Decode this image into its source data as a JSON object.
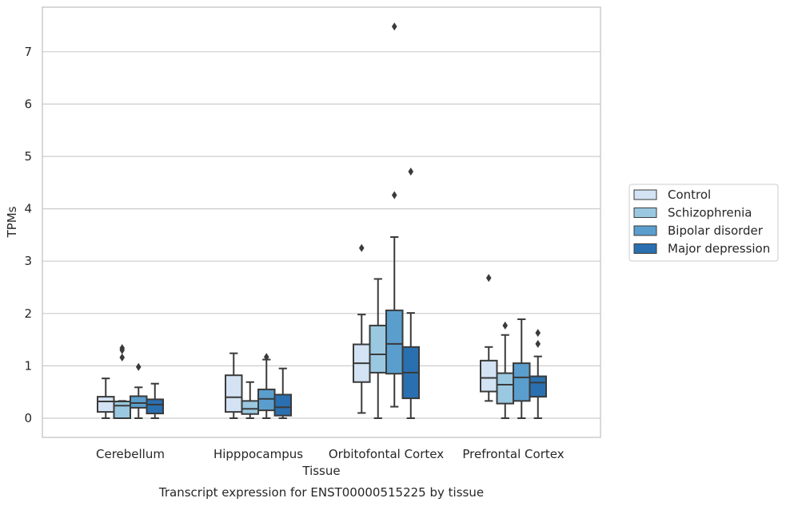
{
  "chart_data": {
    "type": "box",
    "title": "Transcript expression for ENST00000515225 by tissue",
    "xlabel": "Tissue",
    "ylabel": "TPMs",
    "ylim": [
      -0.35,
      7.85
    ],
    "yticks": [
      0,
      1,
      2,
      3,
      4,
      5,
      6,
      7
    ],
    "grid": true,
    "legend_position": "right",
    "categories": [
      "Cerebellum",
      "Hipppocampus",
      "Orbitofontal Cortex",
      "Prefrontal Cortex"
    ],
    "series": [
      {
        "name": "Control",
        "color": "#d3e3f3",
        "boxes": [
          {
            "whisker_low": 0.0,
            "q1": 0.12,
            "median": 0.32,
            "q3": 0.41,
            "whisker_high": 0.76,
            "outliers": []
          },
          {
            "whisker_low": 0.0,
            "q1": 0.12,
            "median": 0.4,
            "q3": 0.82,
            "whisker_high": 1.24,
            "outliers": []
          },
          {
            "whisker_low": 0.1,
            "q1": 0.69,
            "median": 1.05,
            "q3": 1.41,
            "whisker_high": 1.98,
            "outliers": [
              3.25
            ]
          },
          {
            "whisker_low": 0.33,
            "q1": 0.51,
            "median": 0.77,
            "q3": 1.1,
            "whisker_high": 1.36,
            "outliers": [
              2.68
            ]
          }
        ]
      },
      {
        "name": "Schizophrenia",
        "color": "#9ac8e0",
        "boxes": [
          {
            "whisker_low": 0.0,
            "q1": 0.0,
            "median": 0.24,
            "q3": 0.32,
            "whisker_high": 0.33,
            "outliers": [
              1.16,
              1.3,
              1.34
            ]
          },
          {
            "whisker_low": 0.0,
            "q1": 0.08,
            "median": 0.18,
            "q3": 0.33,
            "whisker_high": 0.69,
            "outliers": []
          },
          {
            "whisker_low": 0.0,
            "q1": 0.87,
            "median": 1.22,
            "q3": 1.77,
            "whisker_high": 2.66,
            "outliers": []
          },
          {
            "whisker_low": 0.0,
            "q1": 0.28,
            "median": 0.64,
            "q3": 0.86,
            "whisker_high": 1.59,
            "outliers": [
              1.77
            ]
          }
        ]
      },
      {
        "name": "Bipolar disorder",
        "color": "#5a9ecd",
        "boxes": [
          {
            "whisker_low": 0.0,
            "q1": 0.2,
            "median": 0.29,
            "q3": 0.42,
            "whisker_high": 0.59,
            "outliers": [
              0.98
            ]
          },
          {
            "whisker_low": 0.0,
            "q1": 0.15,
            "median": 0.37,
            "q3": 0.55,
            "whisker_high": 1.12,
            "outliers": [
              1.17
            ]
          },
          {
            "whisker_low": 0.22,
            "q1": 0.85,
            "median": 1.42,
            "q3": 2.06,
            "whisker_high": 3.46,
            "outliers": [
              4.26,
              7.48
            ]
          },
          {
            "whisker_low": 0.0,
            "q1": 0.33,
            "median": 0.78,
            "q3": 1.05,
            "whisker_high": 1.89,
            "outliers": []
          }
        ]
      },
      {
        "name": "Major depression",
        "color": "#2a70b0",
        "boxes": [
          {
            "whisker_low": 0.0,
            "q1": 0.09,
            "median": 0.26,
            "q3": 0.36,
            "whisker_high": 0.66,
            "outliers": []
          },
          {
            "whisker_low": 0.0,
            "q1": 0.05,
            "median": 0.21,
            "q3": 0.45,
            "whisker_high": 0.95,
            "outliers": []
          },
          {
            "whisker_low": 0.0,
            "q1": 0.38,
            "median": 0.87,
            "q3": 1.36,
            "whisker_high": 2.01,
            "outliers": [
              4.71
            ]
          },
          {
            "whisker_low": 0.0,
            "q1": 0.41,
            "median": 0.68,
            "q3": 0.8,
            "whisker_high": 1.18,
            "outliers": [
              1.42,
              1.63
            ]
          }
        ]
      }
    ]
  }
}
